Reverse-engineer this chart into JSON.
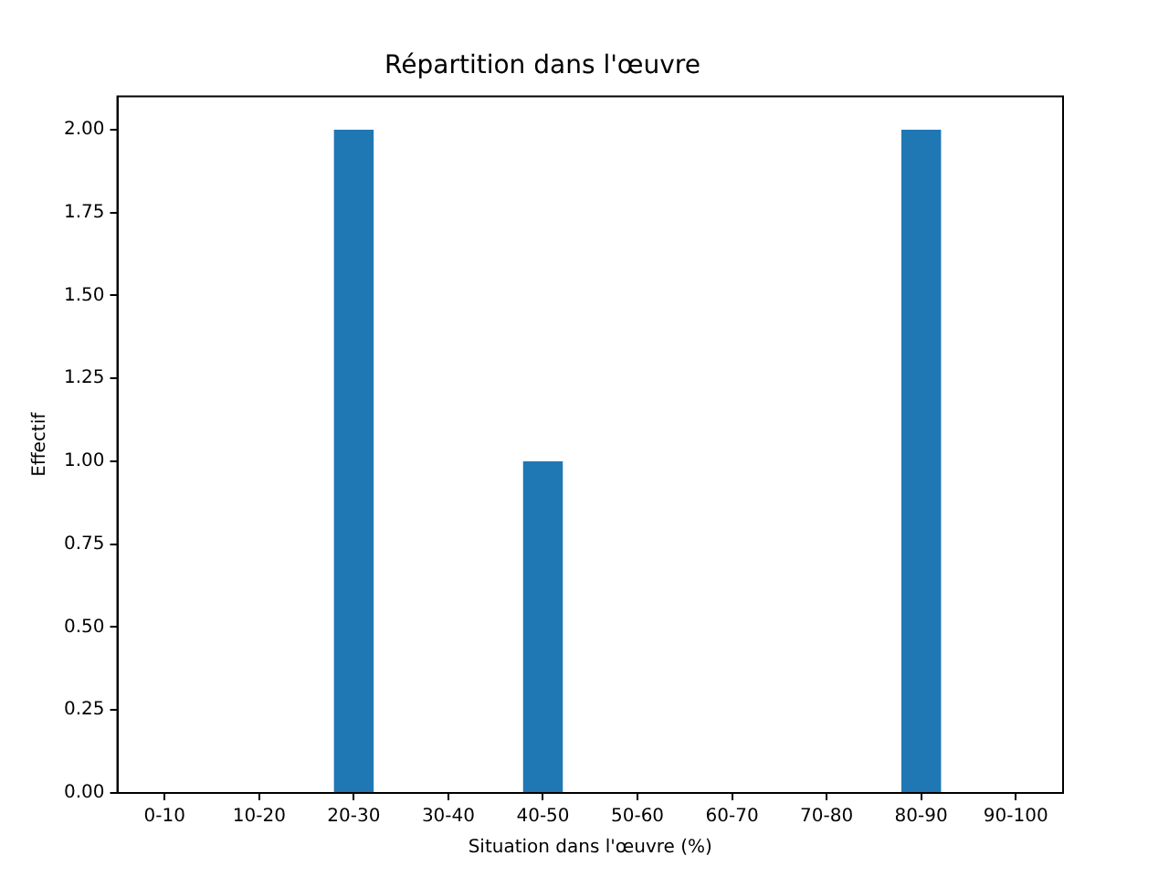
{
  "chart_data": {
    "type": "bar",
    "title": "Répartition dans l'œuvre",
    "xlabel": "Situation dans l'œuvre (%)",
    "ylabel": "Effectif",
    "categories": [
      "0-10",
      "10-20",
      "20-30",
      "30-40",
      "40-50",
      "50-60",
      "60-70",
      "70-80",
      "80-90",
      "90-100"
    ],
    "values": [
      0,
      0,
      2,
      0,
      1,
      0,
      0,
      0,
      2,
      0
    ],
    "color": "#1f77b4",
    "ylim": [
      0,
      2.1
    ],
    "yticks": [
      {
        "value": 0,
        "label": "0.00"
      },
      {
        "value": 0.25,
        "label": "0.25"
      },
      {
        "value": 0.5,
        "label": "0.50"
      },
      {
        "value": 0.75,
        "label": "0.75"
      },
      {
        "value": 1,
        "label": "1.00"
      },
      {
        "value": 1.25,
        "label": "1.25"
      },
      {
        "value": 1.5,
        "label": "1.50"
      },
      {
        "value": 1.75,
        "label": "1.75"
      },
      {
        "value": 2,
        "label": "2.00"
      }
    ],
    "grid": false,
    "legend": false
  }
}
